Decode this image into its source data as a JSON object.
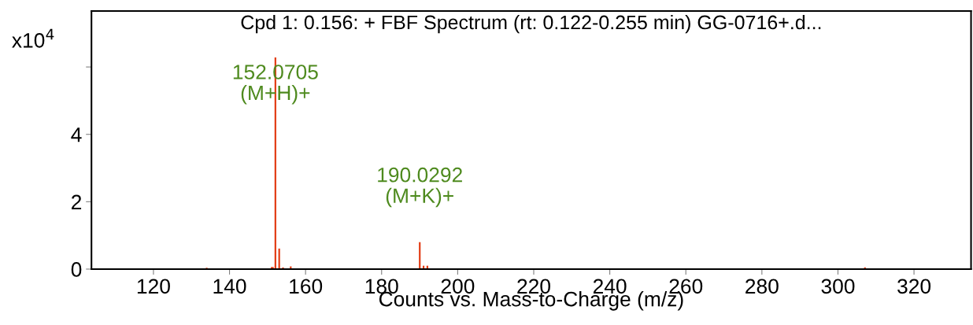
{
  "chart_data": {
    "type": "bar",
    "title": "Cpd 1: 0.156: + FBF Spectrum (rt: 0.122-0.255 min) GG-0716+.d...",
    "xlabel": "Counts vs. Mass-to-Charge (m/z)",
    "x": [
      134.0,
      151.1,
      151.4,
      152.0705,
      153.07,
      154.07,
      156.1,
      190.0292,
      191.03,
      192.03,
      307.1
    ],
    "values": [
      0.04,
      0.06,
      0.06,
      6.28,
      0.61,
      0.05,
      0.08,
      0.8,
      0.1,
      0.1,
      0.05
    ],
    "color": "#e23a12",
    "xlim": [
      103.7,
      335
    ],
    "xticks": [
      120,
      140,
      160,
      180,
      200,
      220,
      240,
      260,
      280,
      300,
      320
    ],
    "ylim": [
      0,
      7.66
    ],
    "yticks": [
      0,
      2,
      4,
      {
        "value": 6,
        "label": null
      }
    ],
    "grid": false,
    "annotations": [
      "x10$^{4}$",
      {
        "text": "152.0705\n(M+H)+",
        "x": 152.0705,
        "y": 6.28
      },
      {
        "text": "190.0292\n(M+K)+",
        "x": 190.0292,
        "y": 0.8
      }
    ]
  }
}
